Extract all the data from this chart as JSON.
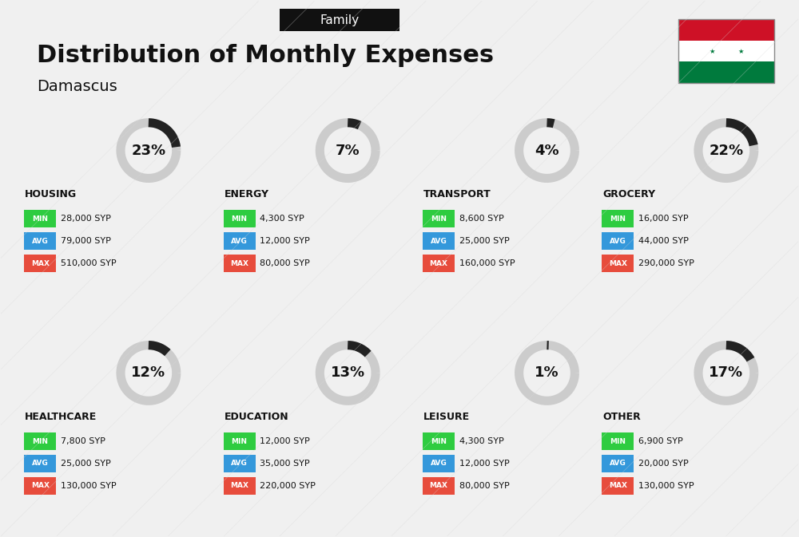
{
  "title": "Distribution of Monthly Expenses",
  "subtitle": "Damascus",
  "header_label": "Family",
  "bg_color": "#f0f0f0",
  "categories": [
    {
      "name": "HOUSING",
      "pct": 23,
      "min_val": "28,000 SYP",
      "avg_val": "79,000 SYP",
      "max_val": "510,000 SYP",
      "row": 0,
      "col": 0
    },
    {
      "name": "ENERGY",
      "pct": 7,
      "min_val": "4,300 SYP",
      "avg_val": "12,000 SYP",
      "max_val": "80,000 SYP",
      "row": 0,
      "col": 1
    },
    {
      "name": "TRANSPORT",
      "pct": 4,
      "min_val": "8,600 SYP",
      "avg_val": "25,000 SYP",
      "max_val": "160,000 SYP",
      "row": 0,
      "col": 2
    },
    {
      "name": "GROCERY",
      "pct": 22,
      "min_val": "16,000 SYP",
      "avg_val": "44,000 SYP",
      "max_val": "290,000 SYP",
      "row": 0,
      "col": 3
    },
    {
      "name": "HEALTHCARE",
      "pct": 12,
      "min_val": "7,800 SYP",
      "avg_val": "25,000 SYP",
      "max_val": "130,000 SYP",
      "row": 1,
      "col": 0
    },
    {
      "name": "EDUCATION",
      "pct": 13,
      "min_val": "12,000 SYP",
      "avg_val": "35,000 SYP",
      "max_val": "220,000 SYP",
      "row": 1,
      "col": 1
    },
    {
      "name": "LEISURE",
      "pct": 1,
      "min_val": "4,300 SYP",
      "avg_val": "12,000 SYP",
      "max_val": "80,000 SYP",
      "row": 1,
      "col": 2
    },
    {
      "name": "OTHER",
      "pct": 17,
      "min_val": "6,900 SYP",
      "avg_val": "20,000 SYP",
      "max_val": "130,000 SYP",
      "row": 1,
      "col": 3
    }
  ],
  "min_color": "#2ecc40",
  "avg_color": "#3498db",
  "max_color": "#e74c3c",
  "label_color": "#ffffff",
  "text_color": "#111111",
  "donut_filled_color": "#222222",
  "donut_empty_color": "#cccccc",
  "syria_flag_colors": [
    "#ce1126",
    "#ffffff",
    "#007a3d"
  ],
  "flag_star_color": "#000000"
}
